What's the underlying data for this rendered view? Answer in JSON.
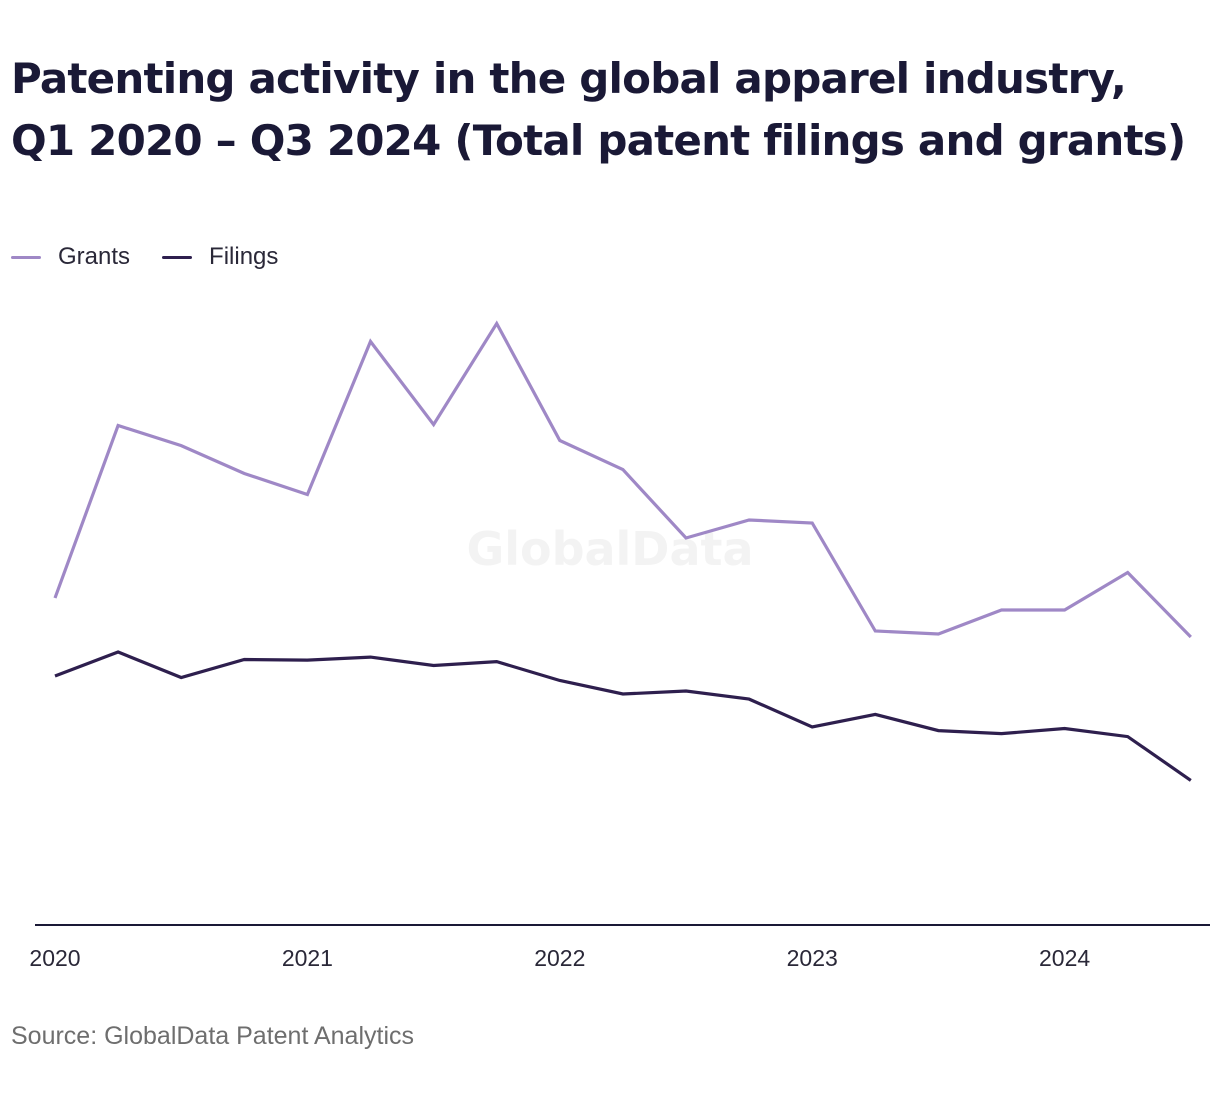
{
  "title": "Patenting activity in the global apparel industry, Q1 2020 – Q3 2024 (Total patent filings and grants)",
  "source": "Source: GlobalData Patent Analytics",
  "watermark": "GlobalData",
  "legend": [
    {
      "name": "Grants",
      "color": "#9f88c6"
    },
    {
      "name": "Filings",
      "color": "#2e1f4e"
    }
  ],
  "chart_data": {
    "type": "line",
    "x": [
      "Q1 2020",
      "Q2 2020",
      "Q3 2020",
      "Q4 2020",
      "Q1 2021",
      "Q2 2021",
      "Q3 2021",
      "Q4 2021",
      "Q1 2022",
      "Q2 2022",
      "Q3 2022",
      "Q4 2022",
      "Q1 2023",
      "Q2 2023",
      "Q3 2023",
      "Q4 2023",
      "Q1 2024",
      "Q2 2024",
      "Q3 2024"
    ],
    "x_tick_labels": [
      "2020",
      "2021",
      "2022",
      "2023",
      "2024"
    ],
    "series": [
      {
        "name": "Grants",
        "color": "#9f88c6",
        "values": [
          1090,
          1665,
          1598,
          1505,
          1435,
          1945,
          1668,
          2005,
          1615,
          1518,
          1290,
          1350,
          1340,
          980,
          970,
          1050,
          1050,
          1175,
          960
        ]
      },
      {
        "name": "Filings",
        "color": "#2e1f4e",
        "values": [
          830,
          910,
          825,
          885,
          883,
          893,
          865,
          878,
          815,
          770,
          780,
          753,
          660,
          702,
          648,
          638,
          655,
          628,
          482
        ]
      }
    ],
    "ylim": [
      0,
      2100
    ],
    "y_axis_visible": false,
    "grid": false,
    "legend_position": "top-left",
    "title": "Patenting activity in the global apparel industry, Q1 2020 – Q3 2024 (Total patent filings and grants)",
    "xlabel": "",
    "ylabel": ""
  }
}
